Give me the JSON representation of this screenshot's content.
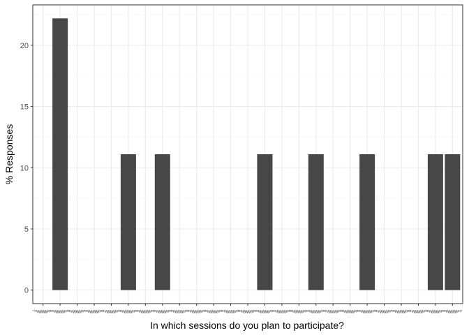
{
  "chart_data": {
    "type": "bar",
    "title": "",
    "xlabel": "In which sessions do you plan to participate?",
    "ylabel": "% Responses",
    "ylim": [
      -1.1,
      23.3
    ],
    "yticks": [
      0,
      5,
      10,
      15,
      20
    ],
    "grid": true,
    "legend": "none",
    "category_count": 25,
    "category_labels_note": "x tick labels are overplotted and illegible",
    "bars": [
      {
        "index": 1,
        "value": 22.2
      },
      {
        "index": 5,
        "value": 11.1
      },
      {
        "index": 7,
        "value": 11.1
      },
      {
        "index": 13,
        "value": 11.1
      },
      {
        "index": 16,
        "value": 11.1
      },
      {
        "index": 19,
        "value": 11.1
      },
      {
        "index": 23,
        "value": 11.1
      },
      {
        "index": 24,
        "value": 11.1
      }
    ]
  },
  "colors": {
    "bar": "#474747",
    "panel_border": "#333333",
    "grid_major": "#ebebeb",
    "grid_minor": "#f5f5f5",
    "background": "#ffffff"
  }
}
